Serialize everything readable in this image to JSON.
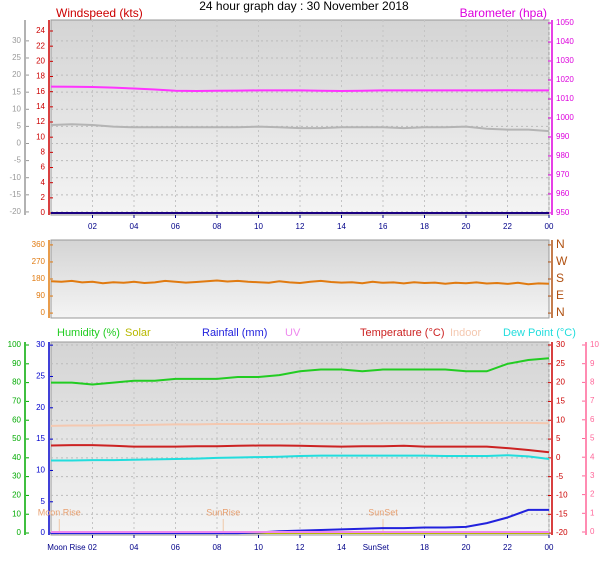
{
  "chart_data": [
    {
      "type": "line",
      "title": "24 hour graph day : 30 November 2018",
      "grid": true,
      "x": [
        0,
        1,
        2,
        3,
        4,
        5,
        6,
        7,
        8,
        9,
        10,
        11,
        12,
        13,
        14,
        15,
        16,
        17,
        18,
        19,
        20,
        21,
        22,
        23,
        24
      ],
      "xlim": [
        0,
        24
      ],
      "xticks": [
        {
          "value": 2,
          "label": "02"
        },
        {
          "value": 4,
          "label": "04"
        },
        {
          "value": 6,
          "label": "06"
        },
        {
          "value": 8,
          "label": "08"
        },
        10,
        12,
        14,
        16,
        18,
        20,
        22,
        {
          "value": 24,
          "label": "00"
        }
      ],
      "axes": [
        {
          "side": "left-outer",
          "color": "#999999",
          "lim": [
            -20.9,
            36.1
          ],
          "ticks": [
            30,
            25,
            20,
            15,
            10,
            5,
            0,
            -5,
            -10,
            -15,
            -20
          ]
        },
        {
          "side": "left",
          "color": "#cc0000",
          "title": "Windspeed (kts)",
          "lim": [
            -0.26,
            25.45
          ],
          "ticks": [
            24,
            22,
            20,
            18,
            16,
            14,
            12,
            10,
            8,
            6,
            4,
            2,
            0
          ]
        },
        {
          "side": "right",
          "color": "#dd00dd",
          "title": "Barometer (hpa)",
          "lim": [
            948.9,
            1051.6
          ],
          "ticks": [
            1050,
            1040,
            1030,
            1020,
            1010,
            1000,
            990,
            980,
            970,
            960,
            950
          ]
        }
      ],
      "series": [
        {
          "axis": 2,
          "color": "#ff33ff",
          "values": [
            1016.5,
            1016.4,
            1016.3,
            1016,
            1015.5,
            1015,
            1014.3,
            1014.2,
            1014.3,
            1014.4,
            1014.5,
            1014.5,
            1014.5,
            1014.3,
            1014.2,
            1014.3,
            1014.5,
            1014.5,
            1014.5,
            1014.5,
            1014.5,
            1014.5,
            1014.6,
            1014.5,
            1014.5
          ]
        },
        {
          "axis": 1,
          "color": "#b4b4b4",
          "values": [
            11.6,
            11.7,
            11.6,
            11.4,
            11.3,
            11.3,
            11.3,
            11.3,
            11.3,
            11.3,
            11.4,
            11.3,
            11.2,
            11.2,
            11.3,
            11.3,
            11.3,
            11.2,
            11.3,
            11.3,
            11.4,
            11.1,
            11,
            11,
            10.8
          ]
        },
        {
          "axis": 1,
          "color": "#1a0080",
          "values": [
            0,
            0,
            0,
            0,
            0,
            0,
            0,
            0,
            0,
            0,
            0,
            0,
            0,
            0,
            0,
            0,
            0,
            0,
            0,
            0,
            0,
            0,
            0,
            0,
            0
          ]
        }
      ]
    },
    {
      "type": "line",
      "grid": false,
      "x": [
        0,
        0.5,
        1,
        1.5,
        2,
        2.5,
        3,
        3.5,
        4,
        4.5,
        5,
        5.5,
        6,
        6.5,
        7,
        7.5,
        8,
        8.5,
        9,
        9.5,
        10,
        10.5,
        11,
        11.5,
        12,
        12.5,
        13,
        13.5,
        14,
        14.5,
        15,
        15.5,
        16,
        16.5,
        17,
        17.5,
        18,
        18.5,
        19,
        19.5,
        20,
        20.5,
        21,
        21.5,
        22,
        22.5,
        23,
        23.5,
        24
      ],
      "xlim": [
        0,
        24
      ],
      "axes": [
        {
          "side": "left",
          "color": "#e07a10",
          "lim": [
            -26,
            386
          ],
          "ticks": [
            360,
            270,
            180,
            90,
            0
          ]
        },
        {
          "side": "right",
          "color": "#b05010",
          "lim": [
            -26,
            386
          ],
          "ticks": [
            {
              "value": 360,
              "label": "N"
            },
            {
              "value": 270,
              "label": "W"
            },
            {
              "value": 180,
              "label": "S"
            },
            {
              "value": 90,
              "label": "E"
            },
            {
              "value": 0,
              "label": "N"
            }
          ]
        }
      ],
      "series": [
        {
          "axis": 0,
          "color": "#e07a10",
          "values": [
            168,
            165,
            170,
            162,
            166,
            158,
            163,
            160,
            165,
            159,
            162,
            170,
            166,
            161,
            164,
            168,
            172,
            167,
            170,
            165,
            163,
            160,
            168,
            162,
            159,
            166,
            170,
            164,
            161,
            163,
            158,
            166,
            160,
            162,
            157,
            163,
            159,
            161,
            155,
            160,
            158,
            162,
            156,
            159,
            154,
            160,
            152,
            157,
            155
          ]
        }
      ]
    },
    {
      "type": "line",
      "grid": true,
      "x": [
        0,
        1,
        2,
        3,
        4,
        5,
        6,
        7,
        8,
        9,
        10,
        11,
        12,
        13,
        14,
        15,
        16,
        17,
        18,
        19,
        20,
        21,
        22,
        23,
        24
      ],
      "xlim": [
        0,
        24
      ],
      "xticks": [
        {
          "value": 2,
          "label": "02"
        },
        {
          "value": 4,
          "label": "04"
        },
        {
          "value": 6,
          "label": "06"
        },
        {
          "value": 8,
          "label": "08"
        },
        10,
        12,
        14,
        18,
        20,
        22,
        {
          "value": 24,
          "label": "00"
        }
      ],
      "axes": [
        {
          "side": "left-outer",
          "color": "#00aa00",
          "lim": [
            -1.05,
            101.6
          ],
          "ticks": [
            100,
            90,
            80,
            70,
            60,
            50,
            40,
            30,
            20,
            10,
            0
          ]
        },
        {
          "side": "left",
          "color": "#0000cc",
          "lim": [
            -0.3,
            30.5
          ],
          "ticks": [
            30,
            25,
            20,
            15,
            10,
            5,
            0
          ]
        },
        {
          "side": "right",
          "color": "#cc0000",
          "lim": [
            -20.5,
            30.8
          ],
          "ticks": [
            30,
            25,
            20,
            15,
            10,
            5,
            0,
            -5,
            -10,
            -15,
            -20
          ]
        },
        {
          "side": "right-outer",
          "color": "#ff6699",
          "lim": [
            -0.16,
            10.16
          ],
          "ticks": [
            10,
            9,
            8,
            7,
            6,
            5,
            4,
            3,
            2,
            1,
            0
          ]
        }
      ],
      "series": [
        {
          "name": "Humidity (%)",
          "axis": 0,
          "color": "#22cc22",
          "values": [
            80,
            80,
            79,
            80,
            81,
            81,
            82,
            82,
            82,
            83,
            83,
            84,
            86,
            87,
            87,
            86,
            87,
            87,
            87,
            87,
            86,
            86,
            90,
            92,
            93
          ]
        },
        {
          "name": "Solar",
          "axis": 0,
          "color": "#b8b800",
          "values": [
            0,
            0,
            0,
            0,
            0,
            0,
            0,
            0,
            0,
            0,
            0,
            0,
            0,
            0,
            0,
            0,
            0,
            0,
            0,
            0,
            0,
            0,
            0,
            0,
            0
          ]
        },
        {
          "name": "Rainfall (mm)",
          "axis": 1,
          "color": "#2222dd",
          "values": [
            0,
            0,
            0,
            0,
            0,
            0,
            0,
            0,
            0,
            0,
            0.1,
            0.3,
            0.4,
            0.5,
            0.6,
            0.7,
            0.8,
            0.8,
            0.9,
            0.9,
            1,
            1.6,
            2.5,
            3.7,
            3.7
          ]
        },
        {
          "name": "UV",
          "axis": 3,
          "color": "#ee88ee",
          "values": [
            0,
            0,
            0,
            0,
            0,
            0,
            0,
            0,
            0,
            0,
            0,
            0,
            0,
            0,
            0,
            0,
            0,
            0,
            0,
            0,
            0,
            0,
            0,
            0,
            0
          ]
        },
        {
          "name": "Temperature (°C)",
          "axis": 2,
          "color": "#cc2222",
          "values": [
            3.3,
            3.4,
            3.4,
            3.2,
            3,
            3,
            3,
            3.1,
            3.1,
            3.2,
            3.3,
            3.3,
            3.2,
            3.1,
            3,
            3.1,
            3.1,
            3.2,
            3,
            3,
            3,
            3,
            2.6,
            2.1,
            1.5
          ]
        },
        {
          "name": "Indoor",
          "axis": 2,
          "color": "#f4c8b0",
          "values": [
            8.5,
            8.6,
            8.6,
            8.7,
            8.7,
            8.8,
            8.9,
            8.9,
            9,
            9,
            9,
            9,
            9.1,
            9.1,
            9.1,
            9.1,
            9.2,
            9.2,
            9.2,
            9.3,
            9.3,
            9.3,
            9.3,
            9.3,
            9.2
          ]
        },
        {
          "name": "Dew Point (°C)",
          "axis": 2,
          "color": "#22dddd",
          "values": [
            -0.7,
            -0.7,
            -0.6,
            -0.6,
            -0.5,
            -0.4,
            -0.3,
            -0.2,
            0,
            0.1,
            0.2,
            0.3,
            0.5,
            0.6,
            0.6,
            0.6,
            0.6,
            0.6,
            0.6,
            0.5,
            0.5,
            0.5,
            0.7,
            0.4,
            -0.3
          ]
        }
      ],
      "events": [
        {
          "label": "SunRise",
          "x": 8.3
        },
        {
          "label": "SunSet",
          "x": 16
        },
        {
          "label": "Moon Rise",
          "x": 0.4
        }
      ],
      "axis_events": [
        {
          "label": "Moon Rise",
          "x": 0.4
        },
        {
          "label": "SunSet",
          "x": 15.6
        }
      ]
    }
  ]
}
